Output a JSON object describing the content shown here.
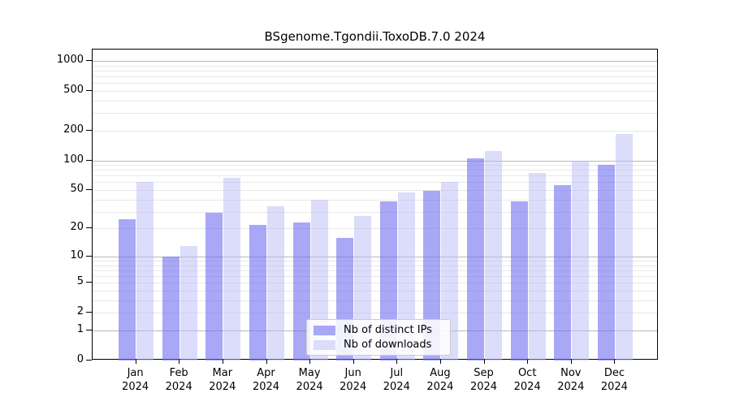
{
  "chart_data": {
    "type": "bar",
    "title": "BSgenome.Tgondii.ToxoDB.7.0 2024",
    "categories": [
      "Jan",
      "Feb",
      "Mar",
      "Apr",
      "May",
      "Jun",
      "Jul",
      "Aug",
      "Sep",
      "Oct",
      "Nov",
      "Dec"
    ],
    "year": "2024",
    "series": [
      {
        "name": "Nb of distinct IPs",
        "key": "distinct-ips",
        "bar_color": "rgba(110,110,240,0.6)",
        "legend_color": "#a8a8f6",
        "values": [
          25,
          10,
          29,
          22,
          23,
          16,
          38,
          49,
          105,
          38,
          56,
          90
        ]
      },
      {
        "name": "Nb of downloads",
        "key": "downloads",
        "bar_color": "rgba(185,185,248,0.5)",
        "legend_color": "#dcdcfb",
        "values": [
          60,
          13,
          66,
          34,
          40,
          27,
          47,
          60,
          125,
          74,
          100,
          185
        ]
      }
    ],
    "yticks": [
      0,
      1,
      2,
      5,
      10,
      20,
      50,
      100,
      200,
      500,
      1000
    ],
    "ylim": [
      0,
      1300
    ],
    "scale": "log1p",
    "grid": "major 1/10/100/1000, minor 2-9 per decade",
    "legend_position": "lower center"
  }
}
